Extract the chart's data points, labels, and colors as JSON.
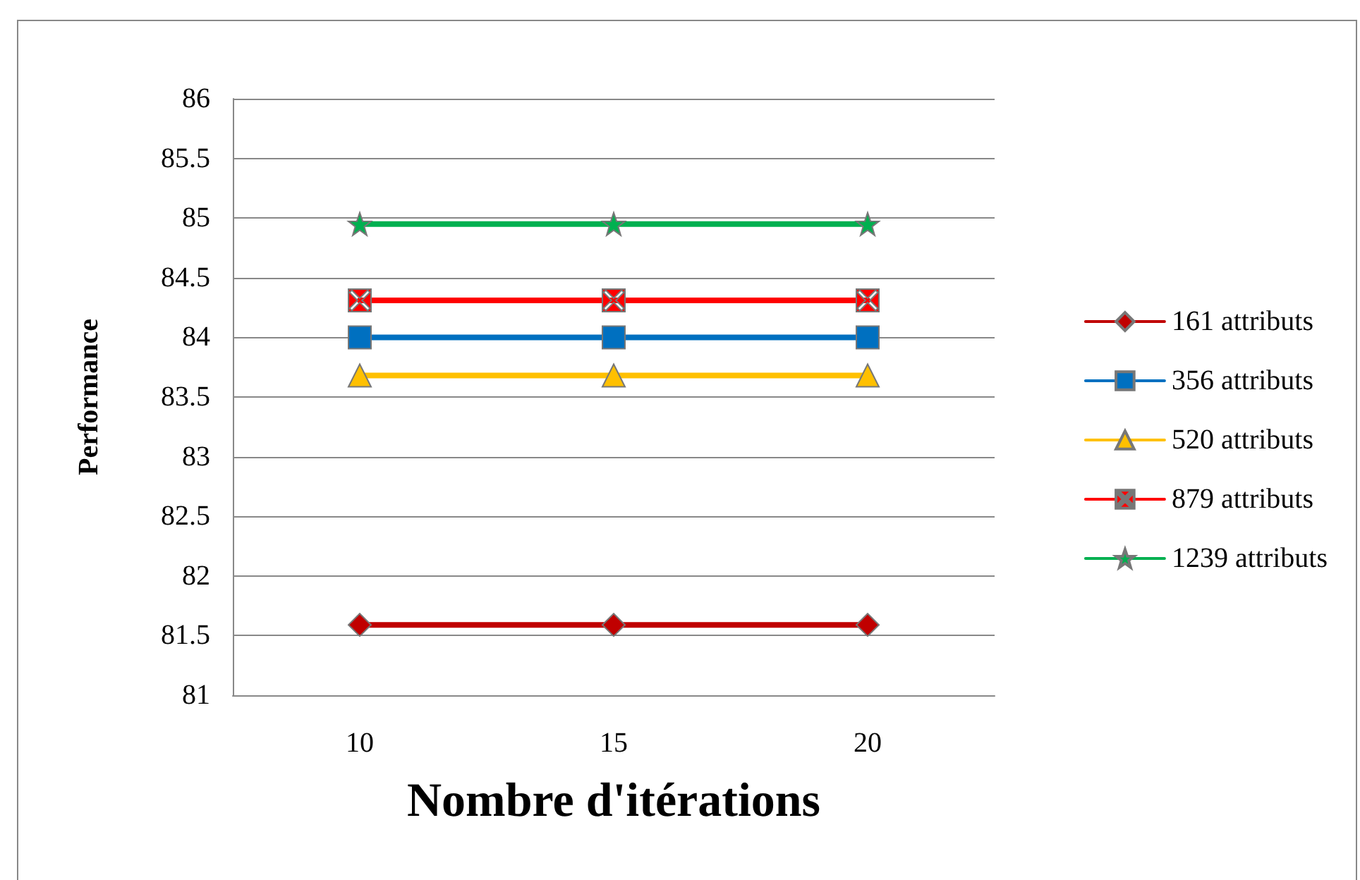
{
  "chart_data": {
    "type": "line",
    "xlabel": "Nombre d'itérations",
    "ylabel": "Performance",
    "categories": [
      "10",
      "15",
      "20"
    ],
    "series": [
      {
        "name": "161 attributs",
        "color": "#c00000",
        "marker": "diamond",
        "values": [
          81.59,
          81.59,
          81.59
        ]
      },
      {
        "name": "356 attributs",
        "color": "#0070c0",
        "marker": "square",
        "values": [
          84.0,
          84.0,
          84.0
        ]
      },
      {
        "name": "520 attributs",
        "color": "#ffc000",
        "marker": "triangle",
        "values": [
          83.68,
          83.68,
          83.68
        ]
      },
      {
        "name": "879 attributs",
        "color": "#ff0000",
        "marker": "cross",
        "values": [
          84.31,
          84.31,
          84.31
        ]
      },
      {
        "name": "1239 attributs",
        "color": "#00b050",
        "marker": "star",
        "values": [
          84.95,
          84.95,
          84.95
        ]
      }
    ],
    "ylim": [
      81,
      86
    ],
    "yticks": [
      81,
      81.5,
      82,
      82.5,
      83,
      83.5,
      84,
      84.5,
      85,
      85.5,
      86
    ],
    "grid": "y",
    "legend": "right",
    "line_style": "solid"
  }
}
